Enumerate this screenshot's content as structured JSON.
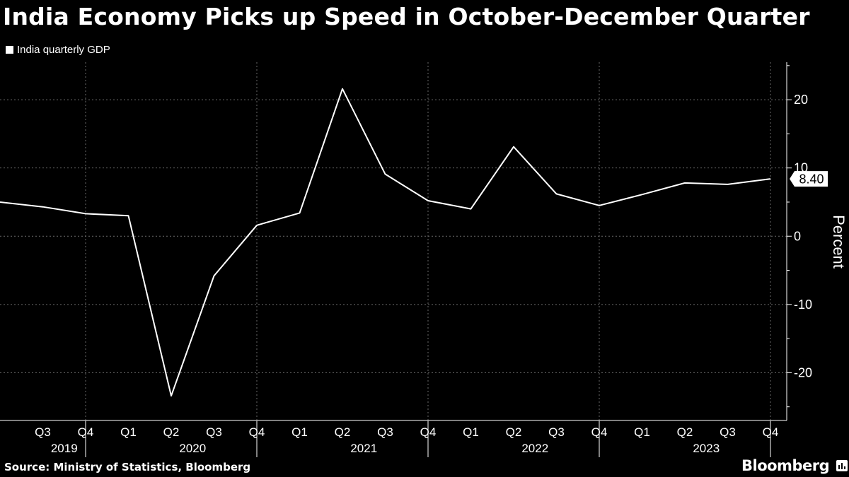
{
  "title": "India Economy Picks up Speed in October-December Quarter",
  "legend_label": "India quarterly GDP",
  "source": "Source: Ministry of Statistics, Bloomberg",
  "brand": "Bloomberg",
  "last_value_label": "8.40",
  "colors": {
    "background": "#000000",
    "line": "#ffffff",
    "grid": "#6a6a6a"
  },
  "chart_data": {
    "type": "line",
    "title": "India Economy Picks up Speed in October-December Quarter",
    "ylabel": "Percent",
    "ylim": [
      -27,
      25.5
    ],
    "yticks": [
      -20,
      -10,
      0,
      10,
      20
    ],
    "grid": true,
    "legend_position": "top-left",
    "quarters": [
      "Q3",
      "Q4",
      "Q1",
      "Q2",
      "Q3",
      "Q4",
      "Q1",
      "Q2",
      "Q3",
      "Q4",
      "Q1",
      "Q2",
      "Q3",
      "Q4",
      "Q1",
      "Q2",
      "Q3",
      "Q4"
    ],
    "years": [
      {
        "label": "2019",
        "quarters": [
          "Q3",
          "Q4"
        ]
      },
      {
        "label": "2020",
        "quarters": [
          "Q1",
          "Q2",
          "Q3",
          "Q4"
        ]
      },
      {
        "label": "2021",
        "quarters": [
          "Q1",
          "Q2",
          "Q3",
          "Q4"
        ]
      },
      {
        "label": "2022",
        "quarters": [
          "Q1",
          "Q2",
          "Q3",
          "Q4"
        ]
      },
      {
        "label": "2023",
        "quarters": [
          "Q1",
          "Q2",
          "Q3",
          "Q4"
        ]
      }
    ],
    "series": [
      {
        "name": "India quarterly GDP",
        "x": [
          "2019-Q2",
          "2019-Q3",
          "2019-Q4",
          "2020-Q1",
          "2020-Q2",
          "2020-Q3",
          "2020-Q4",
          "2021-Q1",
          "2021-Q2",
          "2021-Q3",
          "2021-Q4",
          "2022-Q1",
          "2022-Q2",
          "2022-Q3",
          "2022-Q4",
          "2023-Q1",
          "2023-Q2",
          "2023-Q3",
          "2023-Q4"
        ],
        "values": [
          5.0,
          4.3,
          3.3,
          3.0,
          -23.4,
          -5.8,
          1.6,
          3.4,
          21.6,
          9.1,
          5.2,
          4.0,
          13.1,
          6.2,
          4.5,
          6.1,
          7.8,
          7.6,
          8.4
        ]
      }
    ]
  }
}
